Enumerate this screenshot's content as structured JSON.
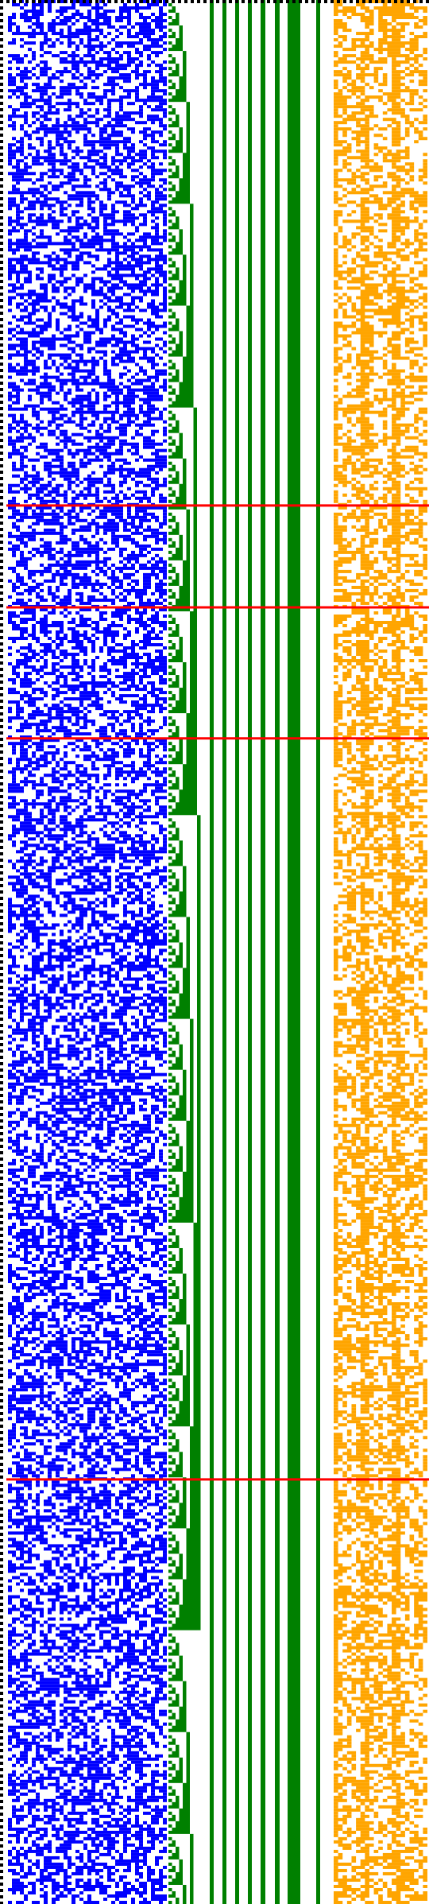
{
  "colors": {
    "background": "#ffffff",
    "blue_region": "#0000ff",
    "green_region": "#008000",
    "orange_region": "#ffa500",
    "marker_lines": "#ff0000",
    "frame_dots": "#000000"
  },
  "rows": 598,
  "blue_region_columns": 40,
  "green_staircase": {
    "bit_columns": 9,
    "solid_bar_count": 8,
    "thick_bar_index": 6
  },
  "orange_region_columns": 21,
  "red_marker_fraction": [
    0.2655,
    0.319,
    0.3878,
    0.777
  ]
}
